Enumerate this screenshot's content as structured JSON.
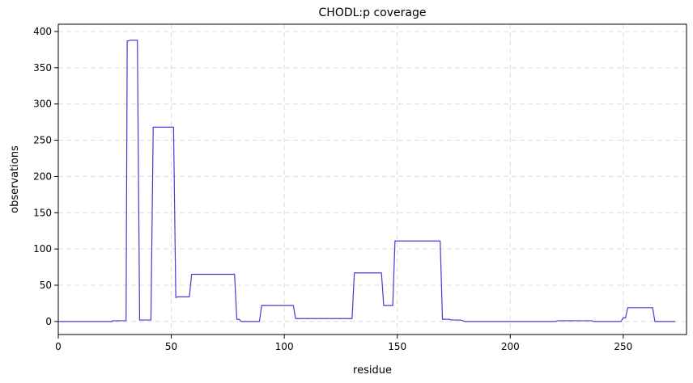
{
  "chart_data": {
    "type": "line",
    "title": "CHODL:p coverage",
    "xlabel": "residue",
    "ylabel": "observations",
    "xlim": [
      0,
      278
    ],
    "ylim": [
      -18,
      410
    ],
    "xticks": [
      0,
      50,
      100,
      150,
      200,
      250
    ],
    "yticks": [
      0,
      50,
      100,
      150,
      200,
      250,
      300,
      350,
      400
    ],
    "grid": true,
    "color": "#5c2fd6",
    "series": [
      {
        "x": [
          0,
          24,
          24,
          29,
          30,
          30.5,
          31,
          32,
          33,
          34,
          35,
          36,
          37,
          38,
          41,
          42,
          43,
          51,
          52,
          53,
          58,
          59,
          78,
          79,
          80,
          81,
          89,
          90,
          104,
          105,
          106,
          130,
          131,
          143,
          144,
          148,
          149,
          169,
          170,
          173,
          174,
          178,
          180,
          220,
          221,
          236,
          237,
          249,
          250,
          251,
          252,
          263,
          264,
          273
        ],
        "y": [
          0,
          0,
          1,
          1,
          1,
          387,
          387,
          388,
          388,
          388,
          388,
          2,
          2,
          2,
          2,
          268,
          268,
          268,
          33,
          34,
          34,
          65,
          65,
          3,
          3,
          0,
          0,
          22,
          22,
          4,
          4,
          4,
          67,
          67,
          22,
          22,
          111,
          111,
          3,
          3,
          2,
          2,
          0,
          0,
          1,
          1,
          0,
          0,
          5,
          5,
          19,
          19,
          0,
          0
        ]
      }
    ]
  }
}
